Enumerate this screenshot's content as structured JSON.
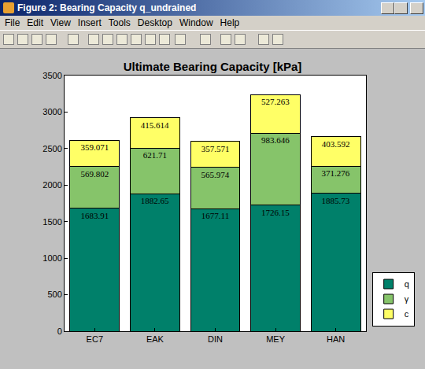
{
  "window": {
    "title": "Figure 2: Bearing Capacity q_undrained",
    "menu": [
      "File",
      "Edit",
      "View",
      "Insert",
      "Tools",
      "Desktop",
      "Window",
      "Help"
    ]
  },
  "chart_data": {
    "type": "bar",
    "title": "Ultimate Bearing Capacity [kPa]",
    "categories": [
      "EC7",
      "EAK",
      "DIN",
      "MEY",
      "HAN"
    ],
    "series": [
      {
        "name": "q",
        "color": "#00806a",
        "values": [
          1683.91,
          1882.65,
          1677.11,
          1726.15,
          1885.73
        ]
      },
      {
        "name": "γ",
        "color": "#86c46a",
        "values": [
          569.802,
          621.71,
          565.974,
          983.646,
          371.276
        ]
      },
      {
        "name": "c",
        "color": "#ffff66",
        "values": [
          359.071,
          415.614,
          357.571,
          527.263,
          403.592
        ]
      }
    ],
    "stacked": true,
    "data_labels": true,
    "grid": false,
    "legend": "right",
    "ylim": [
      0,
      3500
    ],
    "yticks": [
      0,
      500,
      1000,
      1500,
      2000,
      2500,
      3000,
      3500
    ]
  }
}
